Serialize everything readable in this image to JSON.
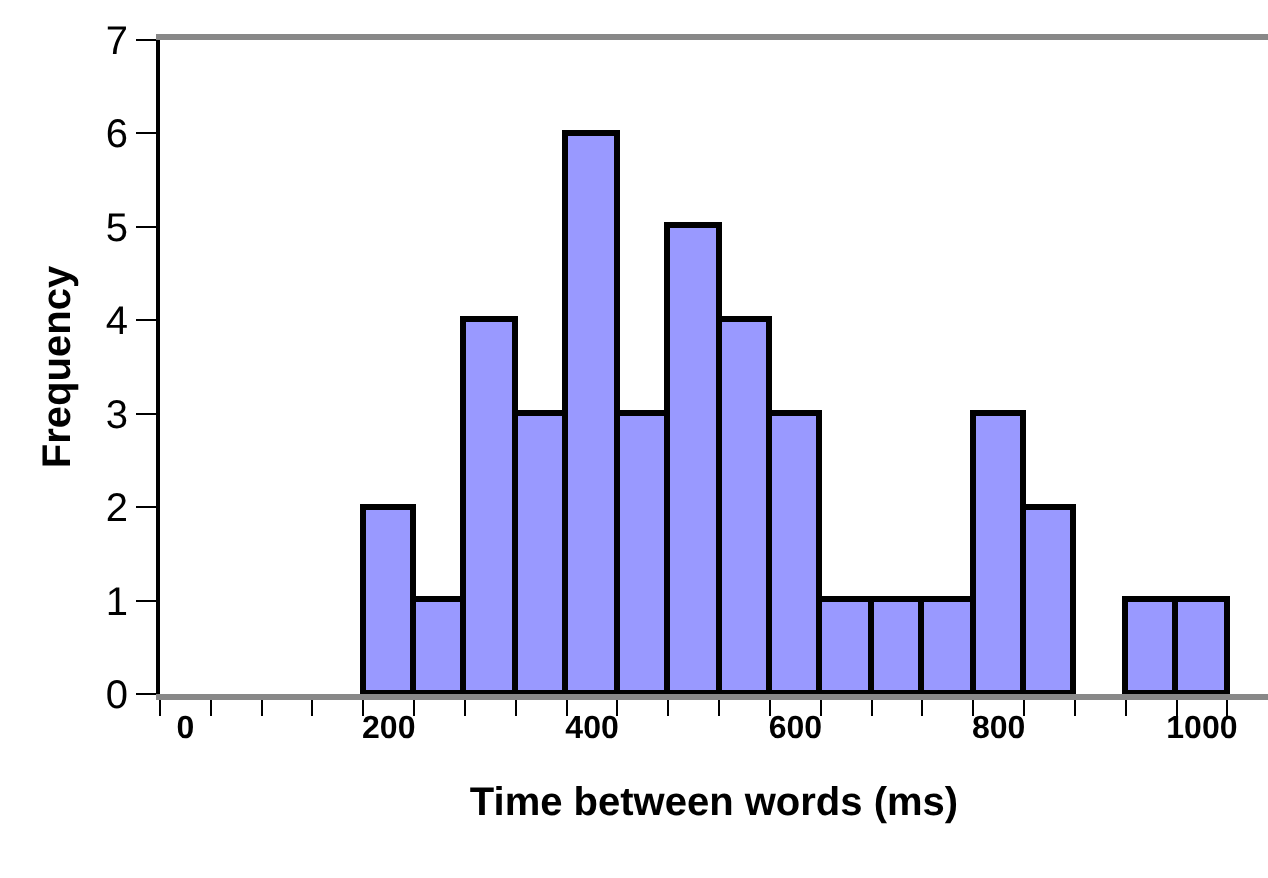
{
  "chart_data": {
    "type": "histogram",
    "xlabel": "Time between words (ms)",
    "ylabel": "Frequency",
    "bins": [
      -25,
      25,
      75,
      125,
      175,
      225,
      275,
      325,
      375,
      425,
      475,
      525,
      575,
      625,
      675,
      725,
      775,
      825,
      875,
      925,
      975,
      1025
    ],
    "values": [
      0,
      0,
      0,
      0,
      2,
      1,
      4,
      3,
      6,
      3,
      5,
      4,
      3,
      1,
      1,
      1,
      3,
      2,
      0,
      1,
      1
    ],
    "color": "#9999ff",
    "xlim": [
      -25,
      1065
    ],
    "xticks": [
      0,
      200,
      400,
      600,
      800,
      1000
    ],
    "ylim": [
      0,
      7
    ],
    "yticks": [
      0,
      1,
      2,
      3,
      4,
      5,
      6,
      7
    ]
  }
}
